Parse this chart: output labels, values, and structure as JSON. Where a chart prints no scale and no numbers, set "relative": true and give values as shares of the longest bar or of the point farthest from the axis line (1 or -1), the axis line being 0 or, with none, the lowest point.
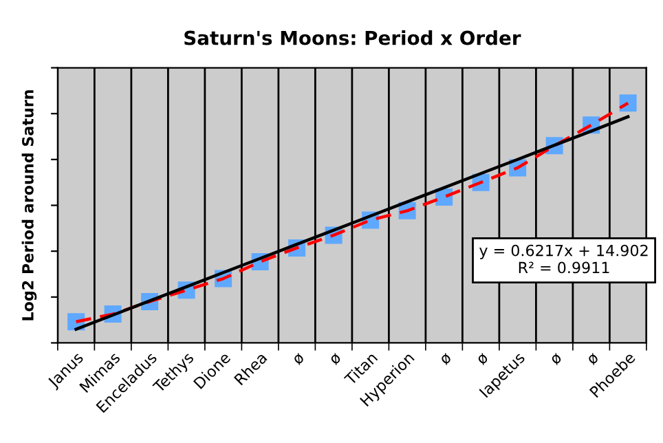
{
  "chart_data": {
    "type": "line",
    "title": "Saturn's Moons: Period x Order",
    "ylabel": "Log2 Period around Saturn",
    "categories": [
      "Janus",
      "Mimas",
      "Enceladus",
      "Tethys",
      "Dione",
      "Rhea",
      "ø",
      "ø",
      "Titan",
      "Hyperion",
      "ø",
      "ø",
      "Iapetus",
      "ø",
      "ø",
      "Phoebe"
    ],
    "relative": true,
    "grid": "x",
    "legend": false,
    "series": [
      {
        "color": "#ff0000",
        "marker": "square",
        "line_style": "dashed",
        "values": [
          0.088,
          0.12,
          0.172,
          0.22,
          0.268,
          0.338,
          0.396,
          0.449,
          0.512,
          0.551,
          0.608,
          0.669,
          0.73,
          0.822,
          0.908,
          1.0
        ]
      },
      {
        "color": "#000000",
        "marker": "none",
        "line_style": "solid",
        "values": [
          0.057,
          0.116,
          0.175,
          0.234,
          0.293,
          0.352,
          0.411,
          0.47,
          0.529,
          0.588,
          0.647,
          0.706,
          0.765,
          0.824,
          0.883,
          0.943
        ]
      }
    ],
    "annotations": [
      "y = 0.6217x + 14.902\nR² = 0.9911"
    ]
  }
}
